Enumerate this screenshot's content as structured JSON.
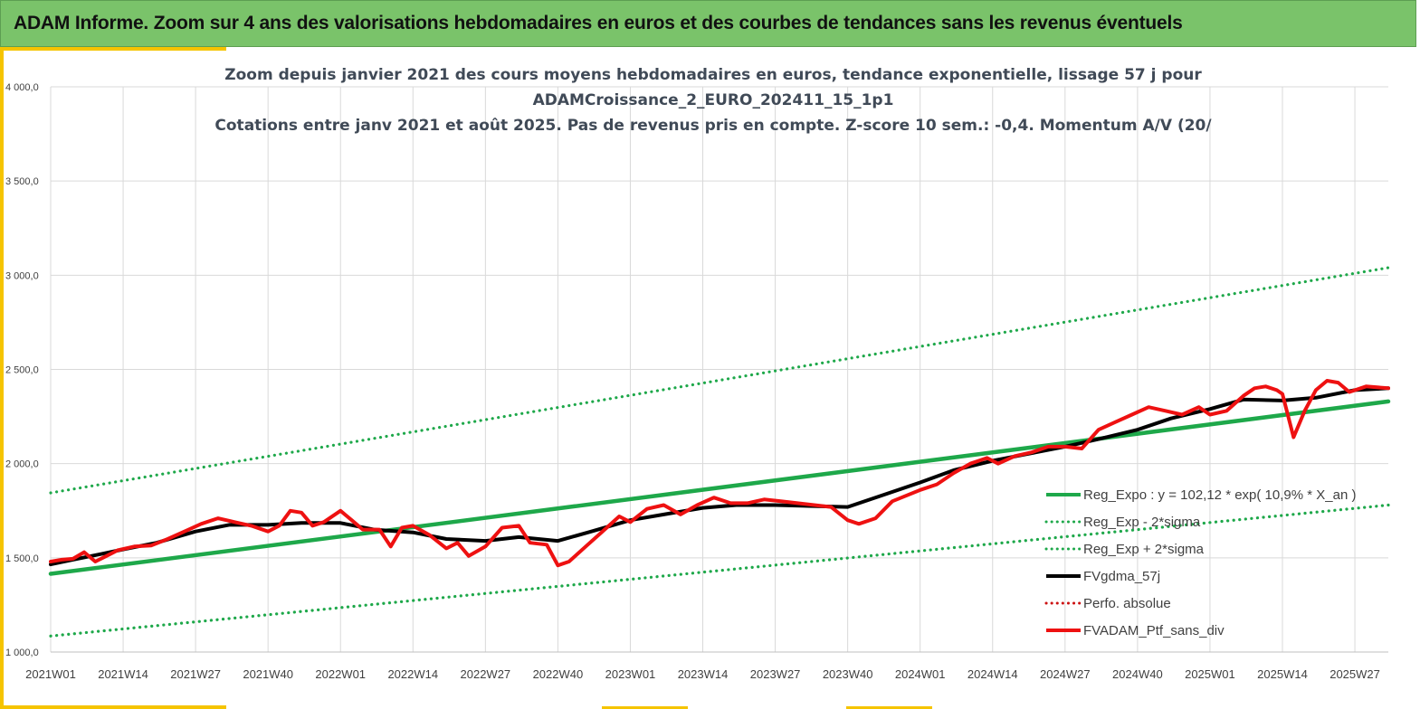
{
  "banner": {
    "title": "ADAM Informe. Zoom sur 4 ans des valorisations hebdomadaires en euros et des courbes de tendances sans les revenus éventuels"
  },
  "colors": {
    "banner_bg": "#7ac36a",
    "accent": "#f5c400",
    "trend_green": "#1ea84a",
    "price_red": "#ee1111",
    "smooth_black": "#000000"
  },
  "chart_data": {
    "type": "line",
    "title_lines": [
      "Zoom depuis janvier 2021 des cours moyens hebdomadaires  en euros, tendance exponentielle, lissage 57 j pour",
      "ADAMCroissance_2_EURO_202411_15_1p1",
      "Cotations  entre janv 2021 et août 2025. Pas de revenus pris  en compte. Z-score 10 sem.: -0,4. Momentum A/V (20/"
    ],
    "ylim": [
      1000,
      4000
    ],
    "y_ticks": [
      "1 000,0",
      "1 500,0",
      "2 000,0",
      "2 500,0",
      "3 000,0",
      "3 500,0",
      "4 000,0"
    ],
    "x_ticks": [
      "2021W01",
      "2021W14",
      "2021W27",
      "2021W40",
      "2022W01",
      "2022W14",
      "2022W27",
      "2022W40",
      "2023W01",
      "2023W14",
      "2023W27",
      "2023W40",
      "2024W01",
      "2024W14",
      "2024W27",
      "2024W40",
      "2025W01",
      "2025W14",
      "2025W27"
    ],
    "grid": true,
    "legend_position": "bottom-right",
    "legend": [
      {
        "label": "Reg_Expo : y = 102,12 * exp( 10,9% *  X_an )",
        "style": "solid",
        "color": "#1ea84a"
      },
      {
        "label": "Reg_Exp - 2*sigma",
        "style": "dotted",
        "color": "#1ea84a"
      },
      {
        "label": "Reg_Exp + 2*sigma",
        "style": "dotted",
        "color": "#1ea84a"
      },
      {
        "label": "FVgdma_57j",
        "style": "solid",
        "color": "#000000"
      },
      {
        "label": "Perfo. absolue",
        "style": "dotted",
        "color": "#cc1111"
      },
      {
        "label": "FVADAM_Ptf_sans_div",
        "style": "solid",
        "color": "#ee1111"
      }
    ],
    "series": [
      {
        "name": "Reg_Expo : y = 102,12 * exp( 10,9% *  X_an )",
        "x": [
          "2021W01",
          "2025W33"
        ],
        "values": [
          1415,
          2330
        ]
      },
      {
        "name": "Reg_Exp - 2*sigma",
        "x": [
          "2021W01",
          "2025W33"
        ],
        "values": [
          1085,
          1780
        ]
      },
      {
        "name": "Reg_Exp + 2*sigma",
        "x": [
          "2021W01",
          "2025W33"
        ],
        "values": [
          1845,
          3040
        ]
      },
      {
        "name": "FVgdma_57j",
        "x": [
          "2021W01",
          "2021W05",
          "2021W10",
          "2021W14",
          "2021W20",
          "2021W27",
          "2021W33",
          "2021W40",
          "2021W46",
          "2022W01",
          "2022W07",
          "2022W14",
          "2022W20",
          "2022W27",
          "2022W33",
          "2022W40",
          "2022W46",
          "2023W01",
          "2023W07",
          "2023W14",
          "2023W20",
          "2023W27",
          "2023W33",
          "2023W40",
          "2023W46",
          "2024W01",
          "2024W07",
          "2024W14",
          "2024W20",
          "2024W27",
          "2024W33",
          "2024W40",
          "2024W46",
          "2025W01",
          "2025W07",
          "2025W14",
          "2025W20",
          "2025W27",
          "2025W33"
        ],
        "values": [
          1465,
          1490,
          1520,
          1545,
          1580,
          1640,
          1675,
          1675,
          1685,
          1685,
          1650,
          1635,
          1600,
          1590,
          1610,
          1590,
          1640,
          1700,
          1730,
          1765,
          1780,
          1780,
          1775,
          1770,
          1830,
          1900,
          1965,
          2015,
          2050,
          2090,
          2130,
          2180,
          2240,
          2290,
          2340,
          2335,
          2350,
          2390,
          2400
        ]
      },
      {
        "name": "FVADAM_Ptf_sans_div",
        "x": [
          "2021W01",
          "2021W03",
          "2021W05",
          "2021W07",
          "2021W09",
          "2021W11",
          "2021W13",
          "2021W16",
          "2021W19",
          "2021W22",
          "2021W25",
          "2021W28",
          "2021W31",
          "2021W34",
          "2021W37",
          "2021W40",
          "2021W42",
          "2021W44",
          "2021W46",
          "2021W48",
          "2021W50",
          "2022W01",
          "2022W03",
          "2022W05",
          "2022W08",
          "2022W10",
          "2022W12",
          "2022W14",
          "2022W17",
          "2022W20",
          "2022W22",
          "2022W24",
          "2022W27",
          "2022W30",
          "2022W33",
          "2022W35",
          "2022W38",
          "2022W40",
          "2022W42",
          "2022W45",
          "2022W48",
          "2022W51",
          "2023W01",
          "2023W04",
          "2023W07",
          "2023W10",
          "2023W13",
          "2023W16",
          "2023W19",
          "2023W22",
          "2023W25",
          "2023W28",
          "2023W31",
          "2023W34",
          "2023W37",
          "2023W40",
          "2023W42",
          "2023W45",
          "2023W48",
          "2024W01",
          "2024W04",
          "2024W07",
          "2024W10",
          "2024W13",
          "2024W15",
          "2024W18",
          "2024W21",
          "2024W24",
          "2024W27",
          "2024W30",
          "2024W33",
          "2024W36",
          "2024W39",
          "2024W42",
          "2024W45",
          "2024W48",
          "2024W51",
          "2025W01",
          "2025W04",
          "2025W07",
          "2025W09",
          "2025W11",
          "2025W13",
          "2025W14",
          "2025W16",
          "2025W18",
          "2025W20",
          "2025W22",
          "2025W24",
          "2025W26",
          "2025W29",
          "2025W33"
        ],
        "values": [
          1480,
          1490,
          1495,
          1530,
          1480,
          1510,
          1540,
          1560,
          1565,
          1600,
          1640,
          1680,
          1710,
          1690,
          1670,
          1640,
          1670,
          1750,
          1740,
          1670,
          1690,
          1750,
          1700,
          1650,
          1650,
          1560,
          1660,
          1670,
          1620,
          1550,
          1580,
          1510,
          1560,
          1660,
          1670,
          1580,
          1570,
          1460,
          1480,
          1560,
          1640,
          1720,
          1690,
          1760,
          1780,
          1730,
          1780,
          1820,
          1790,
          1790,
          1810,
          1800,
          1790,
          1780,
          1770,
          1700,
          1680,
          1710,
          1800,
          1860,
          1890,
          1950,
          2000,
          2030,
          2000,
          2040,
          2060,
          2090,
          2090,
          2080,
          2180,
          2220,
          2260,
          2300,
          2280,
          2260,
          2300,
          2260,
          2280,
          2360,
          2400,
          2410,
          2390,
          2370,
          2140,
          2280,
          2390,
          2440,
          2430,
          2380,
          2410,
          2400
        ]
      }
    ]
  }
}
